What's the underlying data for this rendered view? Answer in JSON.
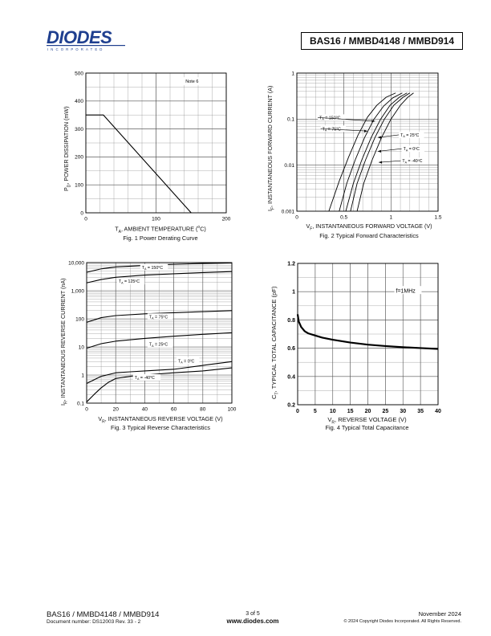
{
  "header": {
    "logo_text": "DIODES",
    "logo_sub": "INCORPORATED",
    "part_numbers": "BAS16 / MMBD4148 / MMBD914",
    "brand_color": "#1f3f8f"
  },
  "charts": {
    "fig1": {
      "caption": "Fig. 1  Power Derating Curve",
      "ylabel_parts": [
        "P",
        "D",
        ", POWER DISSIPATION (mW)"
      ],
      "xlabel_parts": [
        "T",
        "A",
        ", AMBIENT TEMPERATURE (",
        "o",
        "C)"
      ],
      "note": "Note 6"
    },
    "fig2": {
      "caption": "Fig. 2  Typical Forward Characteristics",
      "ylabel_parts": [
        "I",
        "F",
        ", INSTANTANEOUS FORWARD CURRENT (A)"
      ],
      "xlabel_parts": [
        "V",
        "F",
        ", INSTANTANEOUS FORWARD VOLTAGE (V)"
      ]
    },
    "fig3": {
      "caption": "Fig. 3  Typical Reverse Characteristics",
      "ylabel_parts": [
        "I",
        "R",
        ", INSTANTANEOUS REVERSE CURRENT (nA)"
      ],
      "xlabel_parts": [
        "V",
        "R",
        ", INSTANTANEOUS REVERSE VOLTAGE (V)"
      ]
    },
    "fig4": {
      "caption": "Fig. 4 Typical Total Capacitance",
      "ylabel_parts": [
        "C",
        "T",
        ", TYPICAL TOTAL CAPACITANCE (pF)"
      ],
      "xlabel_parts": [
        "V",
        "R",
        ", REVERSE VOLTAGE (V)"
      ],
      "note": "f=1MHz"
    }
  },
  "chart_data": [
    {
      "type": "line",
      "title": "Fig. 1  Power Derating Curve",
      "xlabel": "TA, AMBIENT TEMPERATURE (oC)",
      "ylabel": "PD, POWER DISSIPATION (mW)",
      "xlim": [
        0,
        200
      ],
      "ylim": [
        0,
        500
      ],
      "x_ticks": [
        0,
        100,
        200
      ],
      "y_ticks": [
        0,
        100,
        200,
        300,
        400,
        500
      ],
      "grid": true,
      "series": [
        {
          "x": [
            0,
            25,
            150
          ],
          "y": [
            350,
            350,
            0
          ]
        }
      ]
    },
    {
      "type": "line",
      "title": "Fig. 2  Typical Forward Characteristics",
      "xlabel": "VF, INSTANTANEOUS FORWARD VOLTAGE (V)",
      "ylabel": "IF, INSTANTANEOUS FORWARD CURRENT (A)",
      "xlim": [
        0,
        1.5
      ],
      "ylim": [
        0.001,
        1
      ],
      "y_scale": "log",
      "x_ticks": [
        0,
        0.5,
        1,
        1.5
      ],
      "y_ticks": [
        0.001,
        0.01,
        0.1,
        1
      ],
      "grid": true,
      "series": [
        {
          "name": "TA = 150oC",
          "x": [
            0.34,
            0.45,
            0.55,
            0.65,
            0.75,
            0.85,
            0.95,
            1.05
          ],
          "y": [
            0.001,
            0.0045,
            0.015,
            0.045,
            0.11,
            0.2,
            0.3,
            0.37
          ]
        },
        {
          "name": "TA = 75oC",
          "x": [
            0.45,
            0.53,
            0.62,
            0.72,
            0.82,
            0.92,
            1.02,
            1.12
          ],
          "y": [
            0.001,
            0.004,
            0.013,
            0.04,
            0.1,
            0.19,
            0.29,
            0.37
          ]
        },
        {
          "name": "TA = 25oC",
          "x": [
            0.52,
            0.6,
            0.69,
            0.79,
            0.89,
            0.99,
            1.09,
            1.17
          ],
          "y": [
            0.001,
            0.004,
            0.013,
            0.04,
            0.1,
            0.2,
            0.3,
            0.37
          ]
        },
        {
          "name": "TA = 0oC",
          "x": [
            0.57,
            0.64,
            0.73,
            0.83,
            0.93,
            1.03,
            1.13,
            1.2
          ],
          "y": [
            0.001,
            0.004,
            0.013,
            0.04,
            0.1,
            0.2,
            0.3,
            0.37
          ]
        },
        {
          "name": "TA = -40oC",
          "x": [
            0.64,
            0.71,
            0.8,
            0.9,
            1.0,
            1.1,
            1.18,
            1.24
          ],
          "y": [
            0.001,
            0.004,
            0.013,
            0.04,
            0.1,
            0.2,
            0.3,
            0.37
          ]
        }
      ]
    },
    {
      "type": "line",
      "title": "Fig. 3  Typical Reverse Characteristics",
      "xlabel": "VR, INSTANTANEOUS REVERSE VOLTAGE (V)",
      "ylabel": "IR, INSTANTANEOUS REVERSE CURRENT (nA)",
      "xlim": [
        0,
        100
      ],
      "ylim": [
        0.1,
        10000
      ],
      "y_scale": "log",
      "x_ticks": [
        0,
        20,
        40,
        60,
        80,
        100
      ],
      "y_ticks": [
        0.1,
        1,
        10,
        100,
        1000,
        10000
      ],
      "grid": true,
      "series": [
        {
          "name": "TA = 150oC",
          "x": [
            0,
            10,
            20,
            40,
            60,
            80,
            100
          ],
          "y": [
            4500,
            6000,
            7000,
            8000,
            8700,
            9300,
            9800
          ]
        },
        {
          "name": "TA = 125oC",
          "x": [
            0,
            10,
            20,
            40,
            60,
            80,
            100
          ],
          "y": [
            1900,
            2500,
            3000,
            3600,
            4000,
            4400,
            4800
          ]
        },
        {
          "name": "TA = 75oC",
          "x": [
            0,
            10,
            20,
            40,
            60,
            80,
            100
          ],
          "y": [
            75,
            110,
            130,
            150,
            165,
            180,
            195
          ]
        },
        {
          "name": "TA = 25oC",
          "x": [
            0,
            10,
            20,
            40,
            60,
            80,
            100
          ],
          "y": [
            9,
            13,
            16,
            20,
            24,
            28,
            32
          ]
        },
        {
          "name": "TA = 0oC",
          "x": [
            0,
            10,
            20,
            30,
            40,
            60,
            80,
            100
          ],
          "y": [
            0.5,
            0.9,
            1.2,
            1.3,
            1.4,
            1.6,
            2.2,
            3
          ]
        },
        {
          "name": "TA = -40oC",
          "x": [
            0,
            5,
            10,
            15,
            20,
            30,
            40,
            60,
            80,
            100
          ],
          "y": [
            0.11,
            0.2,
            0.35,
            0.55,
            0.75,
            0.9,
            1.0,
            1.2,
            1.4,
            1.8
          ]
        }
      ]
    },
    {
      "type": "line",
      "title": "Fig. 4 Typical Total Capacitance",
      "xlabel": "VR, REVERSE VOLTAGE (V)",
      "ylabel": "CT, TYPICAL TOTAL CAPACITANCE (pF)",
      "xlim": [
        0,
        40
      ],
      "ylim": [
        0.2,
        1.2
      ],
      "x_ticks": [
        0,
        5,
        10,
        15,
        20,
        25,
        30,
        35,
        40
      ],
      "y_ticks": [
        0.2,
        0.4,
        0.6,
        0.8,
        1,
        1.2
      ],
      "grid": true,
      "series": [
        {
          "x": [
            0,
            0.3,
            1,
            2,
            3,
            5,
            7,
            10,
            15,
            20,
            25,
            30,
            35,
            40
          ],
          "y": [
            0.84,
            0.79,
            0.75,
            0.72,
            0.705,
            0.69,
            0.675,
            0.66,
            0.64,
            0.625,
            0.615,
            0.607,
            0.601,
            0.595
          ]
        }
      ]
    }
  ],
  "footer": {
    "left_title": "BAS16 / MMBD4148 / MMBD914",
    "left_doc": "Document number: DS12003 Rev. 33 - 2",
    "page": "3 of 5",
    "website": "www.diodes.com",
    "date": "November 2024",
    "copyright": "© 2024 Copyright Diodes Incorporated. All Rights Reserved."
  }
}
